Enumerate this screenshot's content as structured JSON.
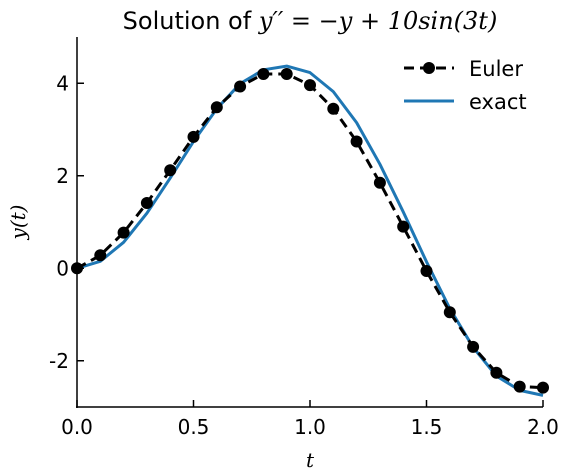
{
  "chart_data": {
    "type": "line",
    "title_text": "Solution of ",
    "title_math": "y′′ = −y + 10sin(3t)",
    "xlabel": "t",
    "ylabel": "y(t)",
    "xlim": [
      0.0,
      2.0
    ],
    "ylim": [
      -3.0,
      5.0
    ],
    "x_ticks": [
      0.0,
      0.5,
      1.0,
      1.5,
      2.0
    ],
    "x_tick_labels": [
      "0.0",
      "0.5",
      "1.0",
      "1.5",
      "2.0"
    ],
    "y_ticks": [
      -2,
      0,
      2,
      4
    ],
    "y_tick_labels": [
      "-2",
      "0",
      "2",
      "4"
    ],
    "grid": false,
    "legend_position": "top-right",
    "series": [
      {
        "name": "Euler",
        "color": "#000000",
        "style": "dashed-markers",
        "x": [
          0.0,
          0.1,
          0.2,
          0.3,
          0.4,
          0.5,
          0.6,
          0.7,
          0.8,
          0.9,
          1.0,
          1.1,
          1.2,
          1.3,
          1.4,
          1.5,
          1.6,
          1.7,
          1.8,
          1.9,
          2.0
        ],
        "y": [
          0.0,
          0.28,
          0.77,
          1.41,
          2.12,
          2.84,
          3.48,
          3.93,
          4.2,
          4.2,
          3.96,
          3.45,
          2.74,
          1.85,
          0.9,
          -0.06,
          -0.95,
          -1.7,
          -2.26,
          -2.56,
          -2.58
        ]
      },
      {
        "name": "exact",
        "color": "#1f77b4",
        "style": "solid",
        "x": [
          0.0,
          0.1,
          0.2,
          0.3,
          0.4,
          0.5,
          0.6,
          0.7,
          0.8,
          0.9,
          1.0,
          1.1,
          1.2,
          1.3,
          1.4,
          1.5,
          1.6,
          1.7,
          1.8,
          1.9,
          2.0
        ],
        "y": [
          0.0,
          0.15,
          0.56,
          1.19,
          1.95,
          2.74,
          3.45,
          3.99,
          4.29,
          4.37,
          4.23,
          3.82,
          3.15,
          2.25,
          1.22,
          0.14,
          -0.87,
          -1.71,
          -2.33,
          -2.64,
          -2.75
        ]
      }
    ]
  }
}
